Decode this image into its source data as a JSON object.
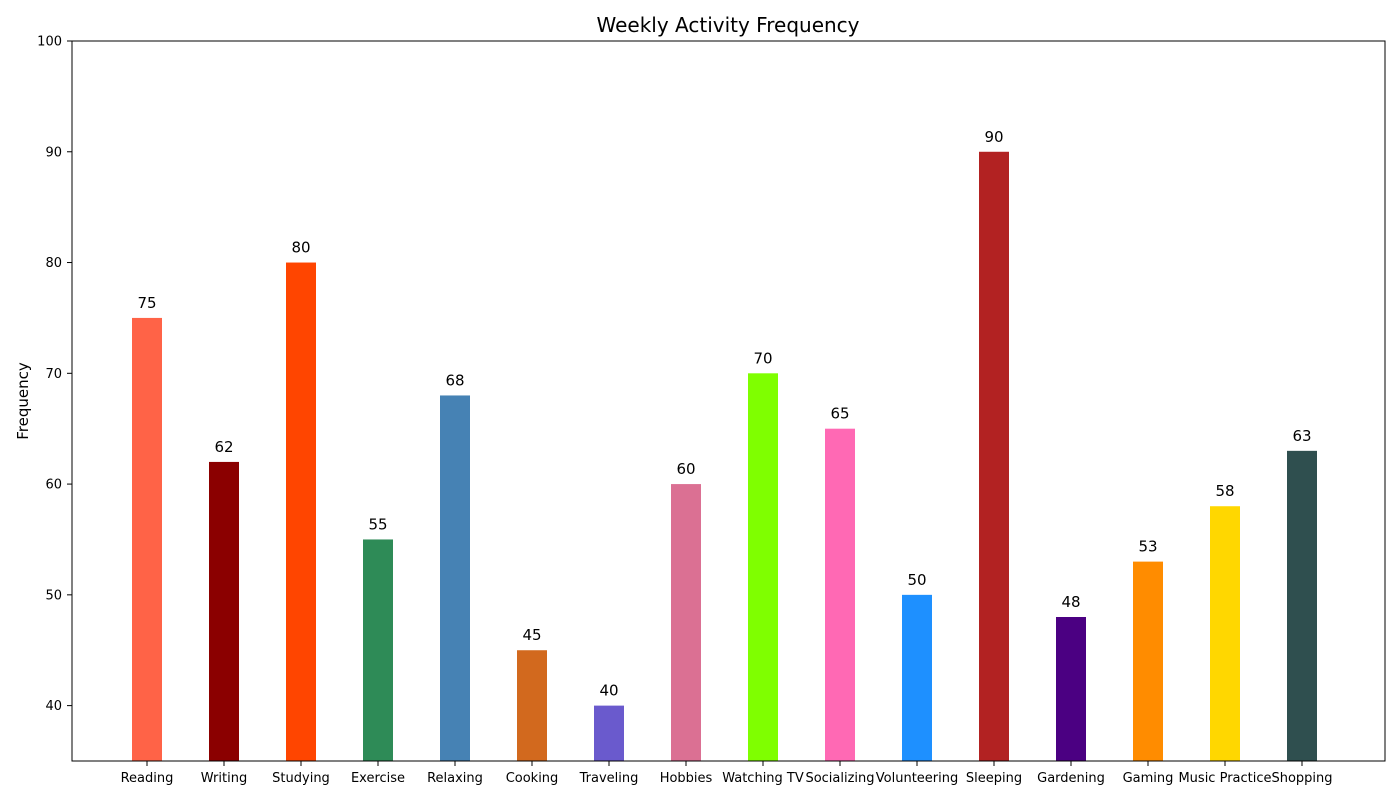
{
  "chart_data": {
    "type": "bar",
    "title": "Weekly Activity Frequency",
    "xlabel": "",
    "ylabel": "Frequency",
    "ylim": [
      35,
      100
    ],
    "yticks": [
      40,
      50,
      60,
      70,
      80,
      90,
      100
    ],
    "grid": false,
    "categories": [
      "Reading",
      "Writing",
      "Studying",
      "Exercise",
      "Relaxing",
      "Cooking",
      "Traveling",
      "Hobbies",
      "Watching TV",
      "Socializing",
      "Volunteering",
      "Sleeping",
      "Gardening",
      "Gaming",
      "Music Practice",
      "Shopping"
    ],
    "values": [
      75,
      62,
      80,
      55,
      68,
      45,
      40,
      60,
      70,
      65,
      50,
      90,
      48,
      53,
      58,
      63
    ],
    "colors": [
      "#ff6347",
      "#8b0000",
      "#ff4500",
      "#2e8b57",
      "#4682b4",
      "#d2691e",
      "#6a5acd",
      "#db7093",
      "#7fff00",
      "#ff69b4",
      "#1e90ff",
      "#b22222",
      "#4b0082",
      "#ff8c00",
      "#ffd700",
      "#2f4f4f"
    ]
  }
}
